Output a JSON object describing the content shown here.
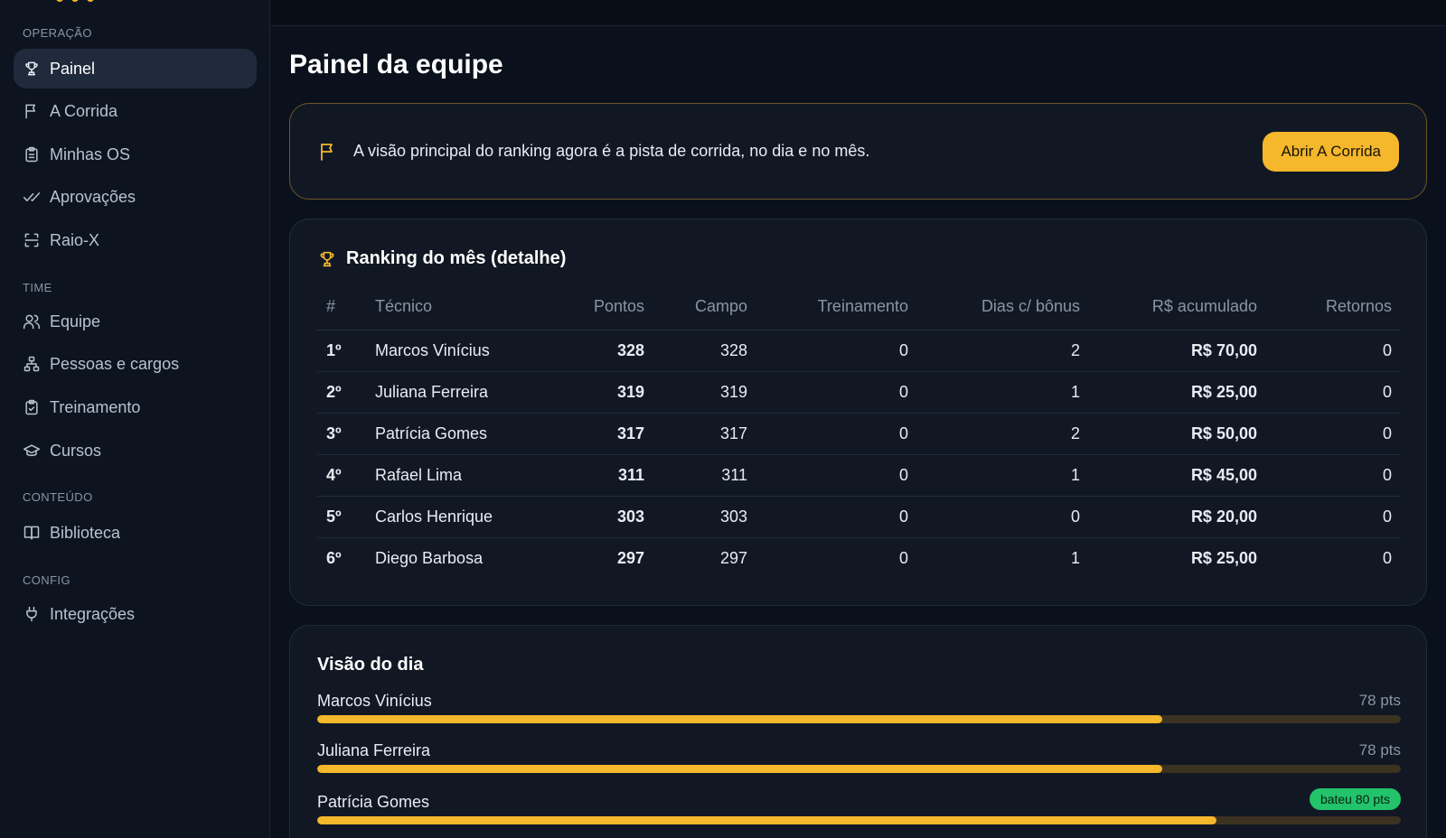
{
  "sidebar": {
    "sections": [
      {
        "label": "OPERAÇÃO"
      },
      {
        "label": "TIME"
      },
      {
        "label": "CONTEÚDO"
      },
      {
        "label": "CONFIG"
      }
    ],
    "items": [
      {
        "label": "Painel",
        "icon": "trophy-icon",
        "active": true
      },
      {
        "label": "A Corrida",
        "icon": "flag-icon"
      },
      {
        "label": "Minhas OS",
        "icon": "clipboard-icon"
      },
      {
        "label": "Aprovações",
        "icon": "double-check-icon"
      },
      {
        "label": "Raio-X",
        "icon": "scan-icon"
      },
      {
        "label": "Equipe",
        "icon": "users-icon"
      },
      {
        "label": "Pessoas e cargos",
        "icon": "org-chart-icon"
      },
      {
        "label": "Treinamento",
        "icon": "clipboard-check-icon"
      },
      {
        "label": "Cursos",
        "icon": "graduation-cap-icon"
      },
      {
        "label": "Biblioteca",
        "icon": "book-icon"
      },
      {
        "label": "Integrações",
        "icon": "plug-icon"
      }
    ]
  },
  "page": {
    "title": "Painel da equipe"
  },
  "banner": {
    "text": "A visão principal do ranking agora é a pista de corrida, no dia e no mês.",
    "button": "Abrir A Corrida"
  },
  "ranking": {
    "title": "Ranking do mês (detalhe)",
    "headers": [
      "#",
      "Técnico",
      "Pontos",
      "Campo",
      "Treinamento",
      "Dias c/ bônus",
      "R$ acumulado",
      "Retornos"
    ],
    "rows": [
      [
        "1º",
        "Marcos Vinícius",
        "328",
        "328",
        "0",
        "2",
        "R$ 70,00",
        "0"
      ],
      [
        "2º",
        "Juliana Ferreira",
        "319",
        "319",
        "0",
        "1",
        "R$ 25,00",
        "0"
      ],
      [
        "3º",
        "Patrícia Gomes",
        "317",
        "317",
        "0",
        "2",
        "R$ 50,00",
        "0"
      ],
      [
        "4º",
        "Rafael Lima",
        "311",
        "311",
        "0",
        "1",
        "R$ 45,00",
        "0"
      ],
      [
        "5º",
        "Carlos Henrique",
        "303",
        "303",
        "0",
        "0",
        "R$ 20,00",
        "0"
      ],
      [
        "6º",
        "Diego Barbosa",
        "297",
        "297",
        "0",
        "1",
        "R$ 25,00",
        "0"
      ]
    ]
  },
  "day": {
    "title": "Visão do dia",
    "rows": [
      {
        "name": "Marcos Vinícius",
        "label": "78 pts",
        "progress": 0.78
      },
      {
        "name": "Juliana Ferreira",
        "label": "78 pts",
        "progress": 0.78
      },
      {
        "name": "Patrícia Gomes",
        "badge": "bateu 80 pts",
        "progress": 0.83
      }
    ]
  },
  "colors": {
    "accent": "#f5b72b",
    "success": "#22c36a",
    "background": "#0b111c"
  }
}
